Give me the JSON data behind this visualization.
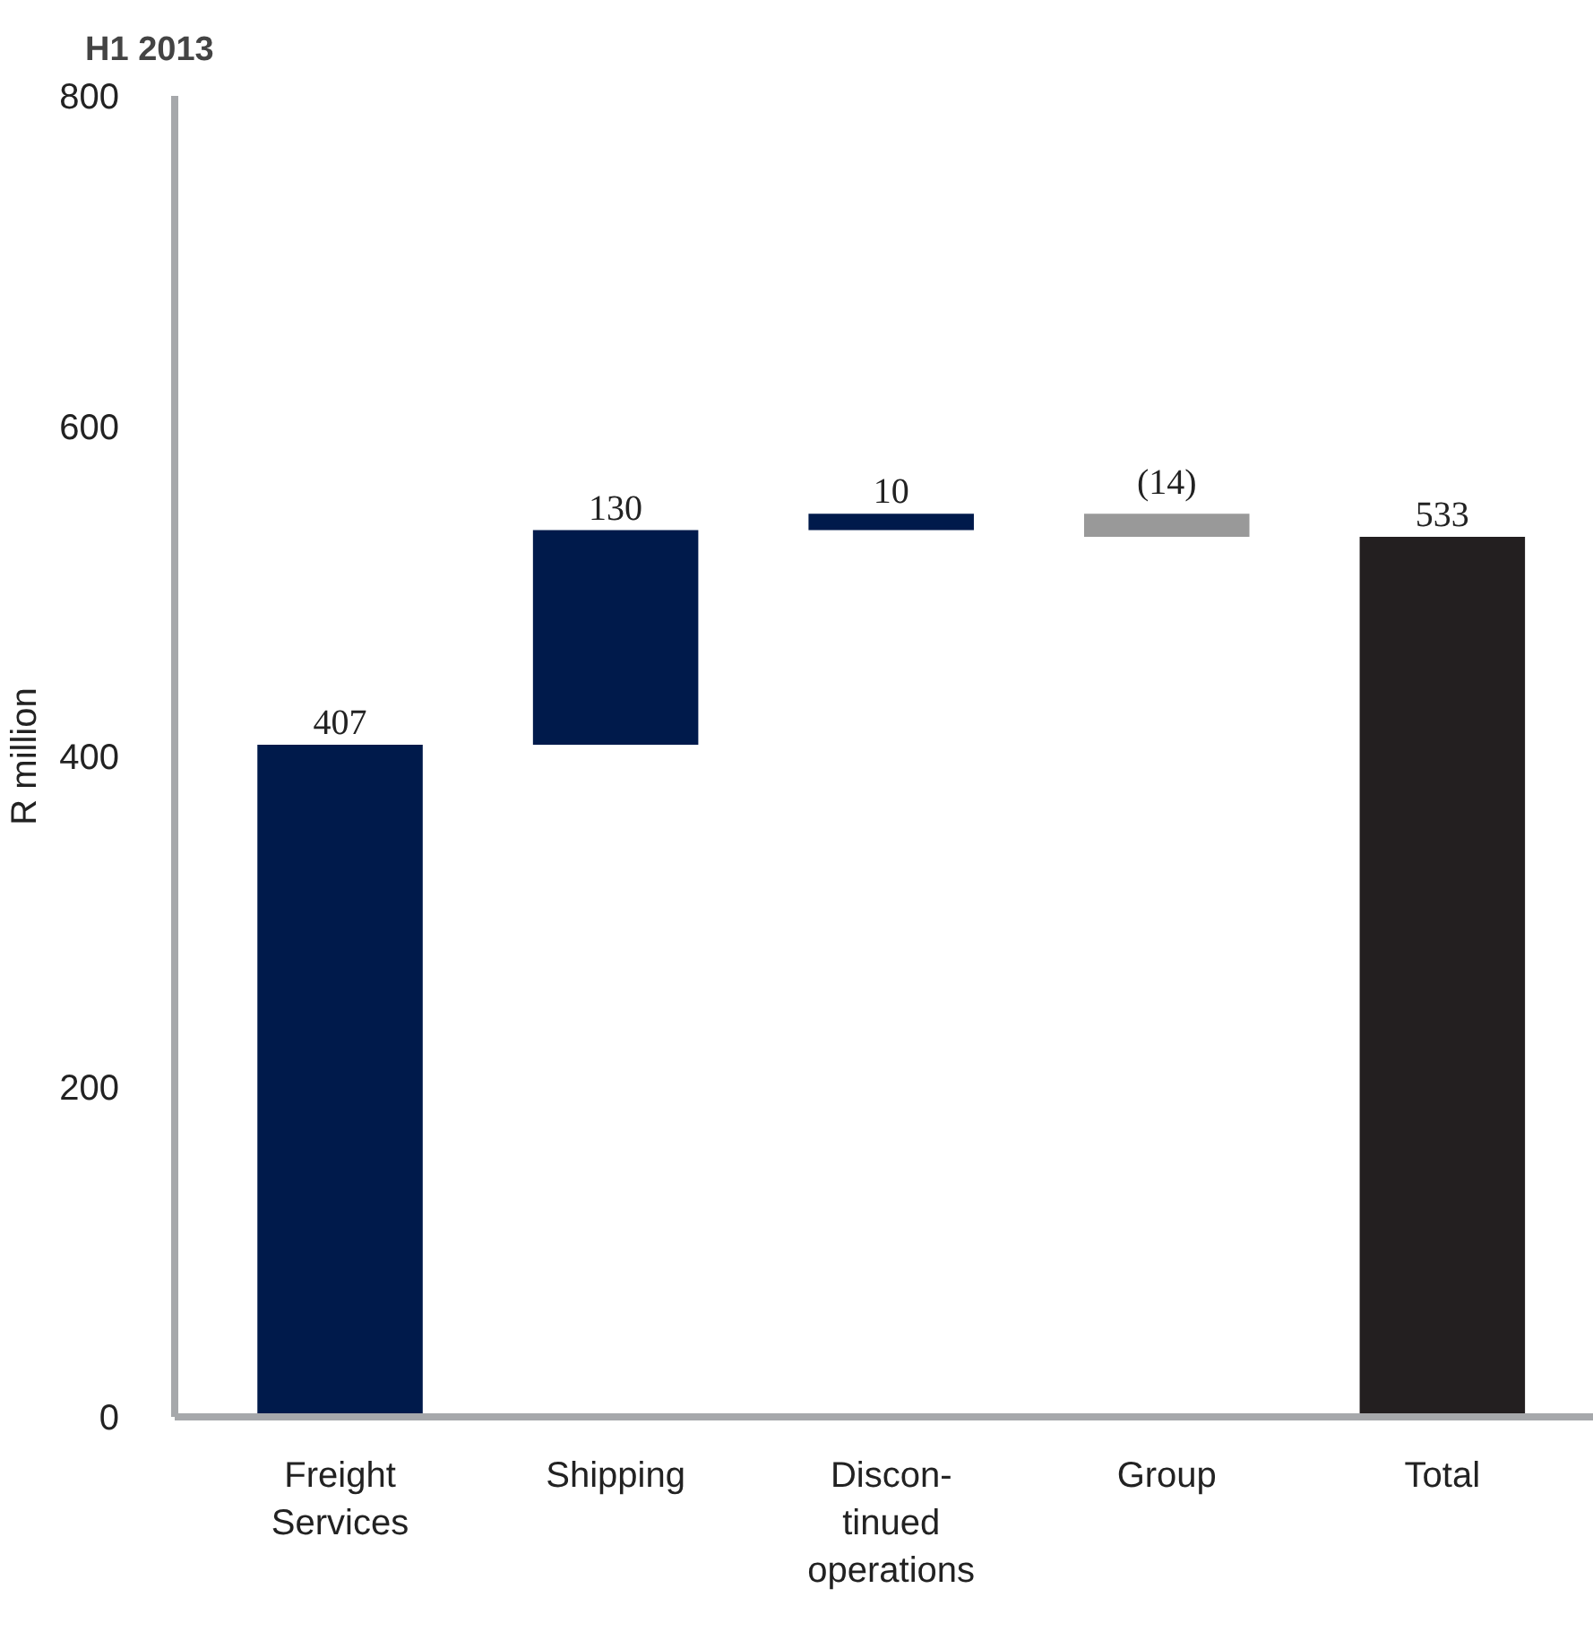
{
  "chart_data": {
    "type": "bar",
    "title": "H1 2013",
    "ylabel": "R million",
    "categories": [
      "Freight\nServices",
      "Shipping",
      "Discon-\ntinued\noperations",
      "Group",
      "Total"
    ],
    "values": [
      407,
      130,
      10,
      -14,
      533
    ],
    "base": [
      0,
      407,
      537,
      547,
      0
    ],
    "colors": [
      "#001a4b",
      "#001a4b",
      "#001a4b",
      "#999999",
      "#231f20"
    ],
    "value_labels": [
      "407",
      "130",
      "10",
      "(14)",
      "533"
    ],
    "ylim": [
      0,
      800
    ],
    "yticks": [
      0,
      200,
      400,
      600,
      800
    ],
    "grid": false
  }
}
